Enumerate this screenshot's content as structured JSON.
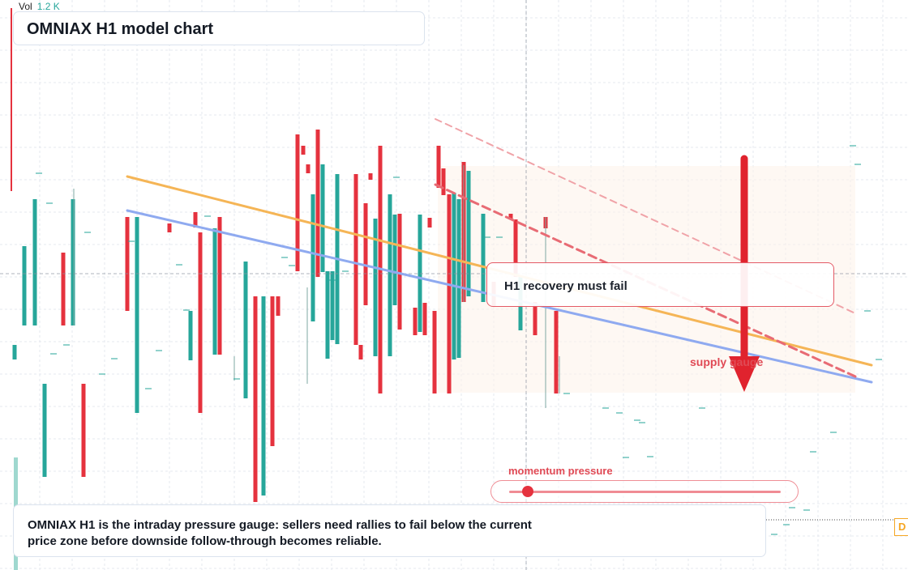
{
  "volume": {
    "label": "Vol",
    "value": "1.2 K"
  },
  "title": "OMNIAX H1 model chart",
  "callout": "H1 recovery must fail",
  "zone_label": "supply gauge",
  "gauge": {
    "label": "momentum pressure",
    "level": 0.07
  },
  "summary": "OMNIAX H1 is the intraday pressure gauge: sellers need rallies to fail below the current price zone before downside follow-through becomes reliable.",
  "price_tag": "D",
  "colors": {
    "bull": "#26a69a",
    "bear": "#e5323e",
    "trend_orange": "#f5b556",
    "trend_blue": "#8faaf0",
    "arrow": "#e0232e",
    "accent": "#e04a55",
    "grid": "#e6e9ef"
  },
  "chart_data": {
    "type": "candlestick",
    "title": "OMNIAX H1 model chart",
    "y_scale": "hidden (no price axis printed)",
    "grid": true,
    "candles_approx": [
      {
        "o": 402,
        "c": 304,
        "dir": "up"
      },
      {
        "o": 312,
        "c": 402,
        "dir": "down"
      },
      {
        "o": 402,
        "c": 246,
        "dir": "up"
      },
      {
        "o": 474,
        "c": 589,
        "dir": "down"
      },
      {
        "o": 268,
        "c": 384,
        "dir": "down"
      },
      {
        "o": 510,
        "c": 268,
        "dir": "up"
      },
      {
        "o": 276,
        "c": 287,
        "dir": "down"
      },
      {
        "o": 384,
        "c": 445,
        "dir": "up"
      },
      {
        "o": 262,
        "c": 281,
        "dir": "down"
      },
      {
        "o": 287,
        "c": 510,
        "dir": "down"
      },
      {
        "o": 438,
        "c": 282,
        "dir": "up"
      },
      {
        "o": 268,
        "c": 438,
        "dir": "down"
      },
      {
        "o": 492,
        "c": 323,
        "dir": "up"
      },
      {
        "o": 366,
        "c": 620,
        "dir": "down"
      },
      {
        "o": 612,
        "c": 366,
        "dir": "up"
      },
      {
        "o": 366,
        "c": 551,
        "dir": "down"
      },
      {
        "o": 366,
        "c": 390,
        "dir": "down"
      },
      {
        "o": 166,
        "c": 335,
        "dir": "down"
      },
      {
        "o": 180,
        "c": 191,
        "dir": "down"
      },
      {
        "o": 203,
        "c": 214,
        "dir": "down"
      },
      {
        "o": 397,
        "c": 240,
        "dir": "up"
      },
      {
        "o": 160,
        "c": 342,
        "dir": "down"
      },
      {
        "o": 203,
        "c": 336,
        "dir": "up"
      },
      {
        "o": 443,
        "c": 335,
        "dir": "up"
      },
      {
        "o": 420,
        "c": 335,
        "dir": "up"
      },
      {
        "o": 425,
        "c": 215,
        "dir": "up"
      },
      {
        "o": 215,
        "c": 426,
        "dir": "down"
      },
      {
        "o": 426,
        "c": 444,
        "dir": "down"
      },
      {
        "o": 251,
        "c": 377,
        "dir": "down"
      },
      {
        "o": 214,
        "c": 222,
        "dir": "down"
      },
      {
        "o": 440,
        "c": 270,
        "dir": "up"
      },
      {
        "o": 180,
        "c": 486,
        "dir": "down"
      },
      {
        "o": 440,
        "c": 240,
        "dir": "up"
      },
      {
        "o": 377,
        "c": 265,
        "dir": "up"
      },
      {
        "o": 264,
        "c": 407,
        "dir": "down"
      },
      {
        "o": 380,
        "c": 414,
        "dir": "down"
      },
      {
        "o": 410,
        "c": 265,
        "dir": "up"
      },
      {
        "o": 374,
        "c": 414,
        "dir": "down"
      },
      {
        "o": 269,
        "c": 281,
        "dir": "down"
      },
      {
        "o": 384,
        "c": 486,
        "dir": "down"
      }
    ],
    "trendlines": [
      {
        "name": "",
        "from": [
          157,
          218
        ],
        "to": [
          1075,
          451
        ],
        "color": "orange"
      },
      {
        "name": "",
        "from": [
          157,
          260
        ],
        "to": [
          1075,
          472
        ],
        "color": "blue"
      },
      {
        "name": "",
        "from": [
          537,
          147
        ],
        "to": [
          1055,
          387
        ],
        "color": "red-dashed-light"
      },
      {
        "name": "",
        "from": [
          537,
          228
        ],
        "to": [
          1055,
          465
        ],
        "color": "red-dashed"
      }
    ]
  }
}
